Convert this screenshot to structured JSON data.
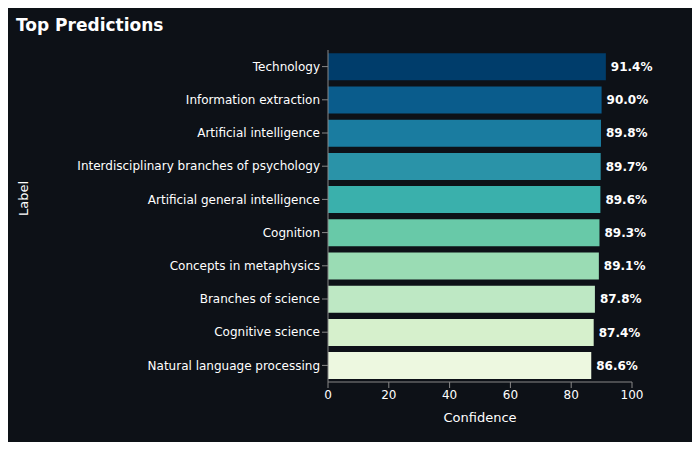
{
  "chart_data": {
    "type": "bar",
    "title": "Top Predictions",
    "orientation": "horizontal",
    "categories": [
      "Technology",
      "Information extraction",
      "Artificial intelligence",
      "Interdisciplinary branches of psychology",
      "Artificial general intelligence",
      "Cognition",
      "Concepts in metaphysics",
      "Branches of science",
      "Cognitive science",
      "Natural language processing"
    ],
    "values": [
      91.4,
      90.0,
      89.8,
      89.7,
      89.6,
      89.3,
      89.1,
      87.8,
      87.4,
      86.6
    ],
    "value_labels": [
      "91.4%",
      "90.0%",
      "89.8%",
      "89.7%",
      "89.6%",
      "89.3%",
      "89.1%",
      "87.8%",
      "87.4%",
      "86.6%"
    ],
    "data_labels": true,
    "colors": [
      "#003d6b",
      "#0a5c8c",
      "#1a7ca0",
      "#2a93a8",
      "#3ab0ac",
      "#68c9a8",
      "#9adcb4",
      "#bee8c4",
      "#d6f0cc",
      "#edf8e0"
    ],
    "xlabel": "Confidence",
    "ylabel": "Label",
    "xlim": [
      0,
      100
    ],
    "xticks": [
      0,
      20,
      40,
      60,
      80,
      100
    ],
    "grid": false
  }
}
